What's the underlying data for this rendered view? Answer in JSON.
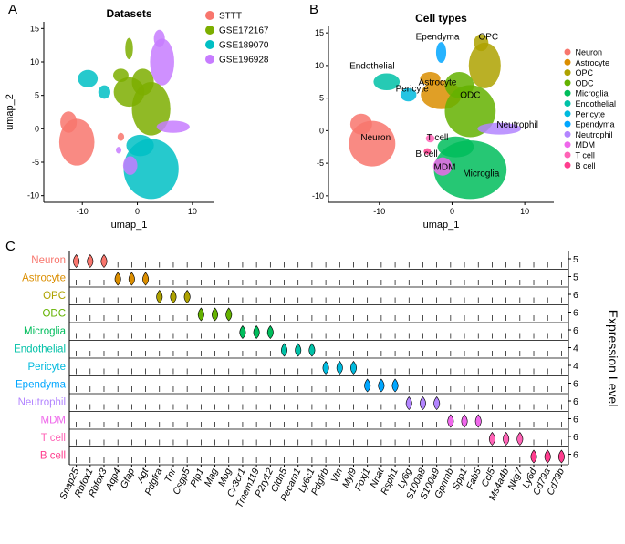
{
  "panels": {
    "a": "A",
    "b": "B",
    "c": "C"
  },
  "chart_data": [
    {
      "type": "scatter",
      "title": "Datasets",
      "xlabel": "umap_1",
      "ylabel": "umap_2",
      "xticks": [
        -10,
        0,
        10
      ],
      "yticks": [
        15,
        10,
        5,
        0,
        -5,
        -10
      ],
      "xlim": [
        -17,
        14
      ],
      "ylim": [
        -11,
        16
      ],
      "legend": [
        {
          "name": "STTT",
          "color": "#F8766D"
        },
        {
          "name": "GSE172167",
          "color": "#7CAE00"
        },
        {
          "name": "GSE189070",
          "color": "#00BFC4"
        },
        {
          "name": "GSE196928",
          "color": "#C77CFF"
        }
      ]
    },
    {
      "type": "scatter",
      "title": "Cell types",
      "xlabel": "umap_1",
      "ylabel": "umap_2",
      "xticks": [
        -10,
        0,
        10
      ],
      "yticks": [
        15,
        10,
        5,
        0,
        -5,
        -10
      ],
      "xlim": [
        -17,
        14
      ],
      "ylim": [
        -11,
        16
      ],
      "legend": [
        {
          "name": "Neuron",
          "color": "#F8766D"
        },
        {
          "name": "Astrocyte",
          "color": "#DB8E00"
        },
        {
          "name": "OPC",
          "color": "#AEA200"
        },
        {
          "name": "ODC",
          "color": "#64B200"
        },
        {
          "name": "Microglia",
          "color": "#00BD5C"
        },
        {
          "name": "Endothelial",
          "color": "#00C1A7"
        },
        {
          "name": "Pericyte",
          "color": "#00BADE"
        },
        {
          "name": "Ependyma",
          "color": "#00A6FF"
        },
        {
          "name": "Neutrophil",
          "color": "#B385FF"
        },
        {
          "name": "MDM",
          "color": "#EF67EB"
        },
        {
          "name": "T cell",
          "color": "#FF63B6"
        },
        {
          "name": "B cell",
          "color": "#FF3D8E"
        }
      ],
      "clusters": [
        {
          "label": "Neuron",
          "x": -10.5,
          "y": -1.5
        },
        {
          "label": "Astrocyte",
          "x": -2,
          "y": 7
        },
        {
          "label": "OPC",
          "x": 5,
          "y": 14
        },
        {
          "label": "ODC",
          "x": 2.5,
          "y": 5
        },
        {
          "label": "Microglia",
          "x": 4,
          "y": -7
        },
        {
          "label": "Endothelial",
          "x": -11,
          "y": 9.5
        },
        {
          "label": "Pericyte",
          "x": -5.5,
          "y": 6
        },
        {
          "label": "Ependyma",
          "x": -2,
          "y": 14
        },
        {
          "label": "Neutrophil",
          "x": 9,
          "y": 0.5
        },
        {
          "label": "MDM",
          "x": -1,
          "y": -6
        },
        {
          "label": "T cell",
          "x": -2,
          "y": -1.5
        },
        {
          "label": "B cell",
          "x": -3.5,
          "y": -4
        }
      ]
    },
    {
      "type": "violin",
      "ylabel": "Expression Level",
      "cell_types": [
        {
          "name": "Neuron",
          "color": "#F8766D",
          "max": "5"
        },
        {
          "name": "Astrocyte",
          "color": "#DB8E00",
          "max": "5"
        },
        {
          "name": "OPC",
          "color": "#AEA200",
          "max": "6"
        },
        {
          "name": "ODC",
          "color": "#64B200",
          "max": "6"
        },
        {
          "name": "Microglia",
          "color": "#00BD5C",
          "max": "6"
        },
        {
          "name": "Endothelial",
          "color": "#00C1A7",
          "max": "4"
        },
        {
          "name": "Pericyte",
          "color": "#00BADE",
          "max": "4"
        },
        {
          "name": "Ependyma",
          "color": "#00A6FF",
          "max": "6"
        },
        {
          "name": "Neutrophil",
          "color": "#B385FF",
          "max": "6"
        },
        {
          "name": "MDM",
          "color": "#EF67EB",
          "max": "6"
        },
        {
          "name": "T cell",
          "color": "#FF63B6",
          "max": "6"
        },
        {
          "name": "B cell",
          "color": "#FF3D8E",
          "max": "6"
        }
      ],
      "genes": [
        "Snap25",
        "Rbfox1",
        "Rbfox3",
        "Aqp4",
        "Gfap",
        "Agt",
        "Pdgfra",
        "Tnr",
        "Csgp5",
        "Plp1",
        "Mag",
        "Mog",
        "Cx3cr1",
        "Tmem119",
        "P2ry12",
        "Cldn5",
        "Pecam1",
        "Ly6c1",
        "Pdgfrb",
        "Vtn",
        "Myl9",
        "Foxj1",
        "Nnat",
        "Rsph1",
        "Ly6g",
        "S100a8",
        "S100a9",
        "Gpnmb",
        "Spp1",
        "Fab5",
        "Ccl5",
        "Ms4a4b",
        "Nkg7",
        "Ly6d",
        "Cd79a",
        "Cd79b"
      ],
      "markers": {
        "Neuron": [
          0,
          1,
          2
        ],
        "Astrocyte": [
          3,
          4,
          5
        ],
        "OPC": [
          6,
          7,
          8
        ],
        "ODC": [
          9,
          10,
          11
        ],
        "Microglia": [
          12,
          13,
          14
        ],
        "Endothelial": [
          15,
          16,
          17
        ],
        "Pericyte": [
          18,
          19,
          20
        ],
        "Ependyma": [
          21,
          22,
          23
        ],
        "Neutrophil": [
          24,
          25,
          26
        ],
        "MDM": [
          27,
          28,
          29
        ],
        "T cell": [
          30,
          31,
          32
        ],
        "B cell": [
          33,
          34,
          35
        ]
      }
    }
  ]
}
